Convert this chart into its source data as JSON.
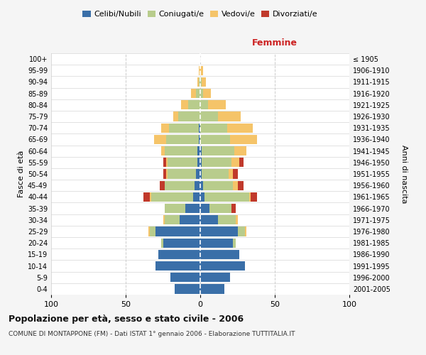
{
  "age_groups": [
    "0-4",
    "5-9",
    "10-14",
    "15-19",
    "20-24",
    "25-29",
    "30-34",
    "35-39",
    "40-44",
    "45-49",
    "50-54",
    "55-59",
    "60-64",
    "65-69",
    "70-74",
    "75-79",
    "80-84",
    "85-89",
    "90-94",
    "95-99",
    "100+"
  ],
  "birth_years": [
    "2001-2005",
    "1996-2000",
    "1991-1995",
    "1986-1990",
    "1981-1985",
    "1976-1980",
    "1971-1975",
    "1966-1970",
    "1961-1965",
    "1956-1960",
    "1951-1955",
    "1946-1950",
    "1941-1945",
    "1936-1940",
    "1931-1935",
    "1926-1930",
    "1921-1925",
    "1916-1920",
    "1911-1915",
    "1906-1910",
    "≤ 1905"
  ],
  "male": {
    "celibi": [
      17,
      20,
      30,
      28,
      25,
      30,
      14,
      10,
      5,
      4,
      3,
      2,
      2,
      1,
      1,
      0,
      0,
      0,
      0,
      0,
      0
    ],
    "coniugati": [
      0,
      0,
      0,
      0,
      1,
      4,
      10,
      14,
      28,
      20,
      19,
      20,
      22,
      22,
      20,
      15,
      8,
      3,
      1,
      0,
      0
    ],
    "vedovi": [
      0,
      0,
      0,
      0,
      0,
      1,
      1,
      0,
      1,
      0,
      1,
      1,
      2,
      8,
      5,
      3,
      5,
      3,
      1,
      1,
      0
    ],
    "divorziati": [
      0,
      0,
      0,
      0,
      0,
      0,
      0,
      0,
      4,
      3,
      2,
      2,
      0,
      0,
      0,
      0,
      0,
      0,
      0,
      0,
      0
    ]
  },
  "female": {
    "nubili": [
      16,
      20,
      30,
      26,
      22,
      25,
      12,
      6,
      3,
      2,
      1,
      1,
      1,
      0,
      0,
      0,
      0,
      0,
      0,
      0,
      0
    ],
    "coniugate": [
      0,
      0,
      0,
      0,
      2,
      5,
      12,
      15,
      30,
      20,
      18,
      20,
      22,
      20,
      18,
      12,
      5,
      2,
      1,
      0,
      0
    ],
    "vedove": [
      0,
      0,
      0,
      0,
      0,
      1,
      1,
      0,
      1,
      3,
      3,
      5,
      8,
      18,
      17,
      15,
      12,
      5,
      3,
      2,
      0
    ],
    "divorziate": [
      0,
      0,
      0,
      0,
      0,
      0,
      0,
      3,
      4,
      4,
      3,
      3,
      0,
      0,
      0,
      0,
      0,
      0,
      0,
      0,
      0
    ]
  },
  "colors": {
    "celibi": "#3a6fa8",
    "coniugati": "#b8cc8c",
    "vedovi": "#f5c469",
    "divorziati": "#c0392b"
  },
  "xlim": 100,
  "title": "Popolazione per età, sesso e stato civile - 2006",
  "subtitle": "COMUNE DI MONTAPPONE (FM) - Dati ISTAT 1° gennaio 2006 - Elaborazione TUTTITALIA.IT",
  "ylabel_left": "Fasce di età",
  "ylabel_right": "Anni di nascita",
  "label_femmine": "Femmine",
  "bg_color": "#f5f5f5",
  "bar_bg_color": "#ffffff",
  "grid_color": "#cccccc"
}
